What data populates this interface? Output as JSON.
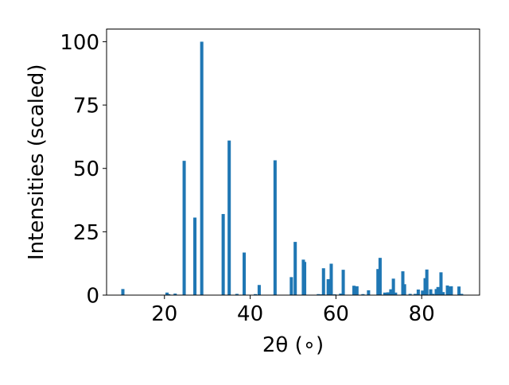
{
  "chart_data": {
    "type": "bar",
    "title": "",
    "xlabel": "2θ (∘)",
    "ylabel": "Intensities (scaled)",
    "xlim": [
      6.5,
      93.5
    ],
    "ylim": [
      0,
      105
    ],
    "xticks": [
      20,
      40,
      60,
      80
    ],
    "yticks": [
      0,
      25,
      50,
      75,
      100
    ],
    "xtick_labels": [
      "20",
      "40",
      "60",
      "80"
    ],
    "ytick_labels": [
      "0",
      "25",
      "50",
      "75",
      "100"
    ],
    "bar_color": "#1f77b4",
    "grid": false,
    "bar_width": 0.75,
    "x": [
      10.3,
      20.6,
      21.0,
      22.5,
      24.6,
      27.1,
      28.7,
      33.7,
      35.1,
      36.9,
      38.6,
      41.2,
      42.1,
      45.8,
      49.6,
      50.5,
      52.4,
      52.7,
      55.9,
      56.5,
      57.1,
      58.2,
      58.9,
      59.7,
      61.1,
      61.7,
      64.2,
      64.9,
      66.3,
      67.6,
      69.8,
      70.3,
      71.4,
      72.1,
      72.8,
      73.4,
      73.9,
      75.6,
      76.0,
      77.3,
      78.5,
      79.2,
      80.2,
      80.8,
      81.2,
      82.1,
      82.6,
      83.4,
      83.8,
      84.5,
      85.0,
      86.0,
      86.4,
      86.9,
      88.7,
      89.3
    ],
    "values": [
      2.4,
      1.0,
      0.4,
      0.6,
      53,
      30.6,
      100,
      32,
      61,
      0.5,
      16.8,
      0.4,
      4.0,
      53.2,
      7.1,
      21,
      14,
      13.1,
      0.4,
      0.3,
      10.6,
      6.3,
      12.4,
      0.3,
      0.6,
      10,
      3.7,
      3.5,
      0.4,
      1.9,
      10.3,
      14.7,
      1.0,
      1.1,
      2.3,
      6.5,
      1.0,
      9.4,
      4.3,
      0.5,
      0.5,
      2.2,
      1.8,
      6.7,
      10.1,
      2.3,
      0.5,
      2.4,
      3.2,
      9.0,
      1.2,
      3.8,
      3.4,
      3.5,
      3.4,
      0.5
    ]
  }
}
